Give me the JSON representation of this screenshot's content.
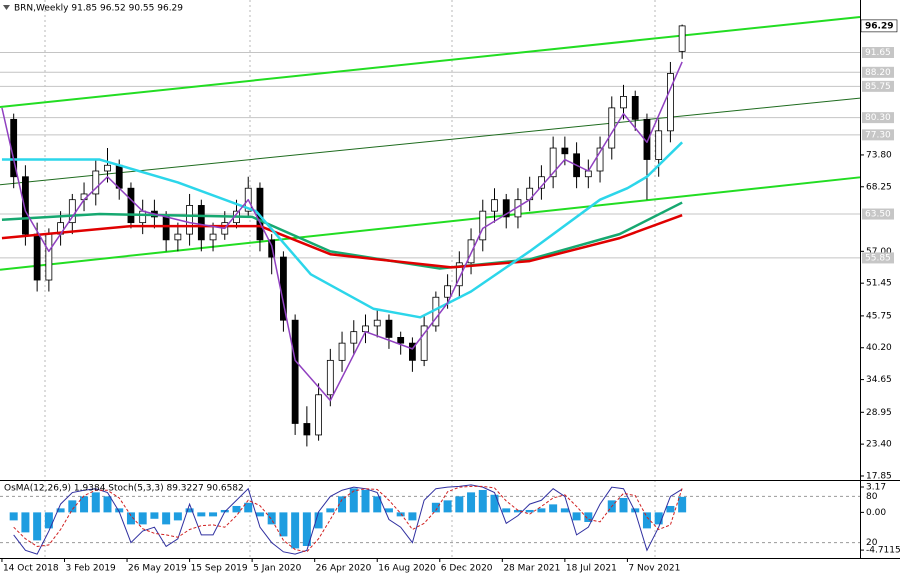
{
  "chart_data": [
    {
      "type": "candlestick",
      "title": "BRN,Weekly  91.85 96.52 90.55 96.29",
      "xlim": [
        -0.5,
        219.5
      ],
      "xticks": [
        {
          "value": 0,
          "label": "14 Oct 2018"
        },
        {
          "value": 16,
          "label": "3 Feb 2019"
        },
        {
          "value": 32,
          "label": "26 May 2019"
        },
        {
          "value": 48,
          "label": "15 Sep 2019"
        },
        {
          "value": 64,
          "label": "5 Jan 2020"
        },
        {
          "value": 80,
          "label": "26 Apr 2020"
        },
        {
          "value": 96,
          "label": "16 Aug 2020"
        },
        {
          "value": 112,
          "label": "6 Dec 2020"
        },
        {
          "value": 128,
          "label": "28 Mar 2021"
        },
        {
          "value": 144,
          "label": "18 Jul 2021"
        },
        {
          "value": 160,
          "label": "7 Nov 2021"
        }
      ],
      "ylim": [
        17.15,
        100.8
      ],
      "yticks": [
        {
          "value": 73.8,
          "label": "73.80"
        },
        68.25,
        {
          "value": 57,
          "label": "57.00"
        },
        51.45,
        45.75,
        {
          "value": 40.2,
          "label": "40.20"
        },
        34.65,
        28.95,
        {
          "value": 23.4,
          "label": "23.40"
        },
        17.85
      ],
      "levels": [
        91.65,
        {
          "value": 88.2,
          "label": "88.20"
        },
        85.75,
        {
          "value": 80.3,
          "label": "80.30"
        },
        {
          "value": 77.3,
          "label": "77.30"
        },
        {
          "value": 63.5,
          "label": "63.50"
        },
        55.85
      ],
      "x": [
        3,
        6,
        9,
        12,
        15,
        18,
        21,
        24,
        27,
        30,
        33,
        36,
        39,
        42,
        45,
        48,
        51,
        54,
        57,
        60,
        63,
        66,
        69,
        72,
        75,
        78,
        81,
        84,
        87,
        90,
        93,
        96,
        99,
        102,
        105,
        108,
        111,
        114,
        117,
        120,
        123,
        126,
        129,
        132,
        135,
        138,
        141,
        144,
        147,
        150,
        153,
        156,
        159,
        162,
        165,
        168,
        171,
        174
      ],
      "open": [
        80,
        70,
        60,
        52,
        60,
        62,
        66,
        67,
        71,
        72,
        68,
        62,
        64,
        63,
        59,
        60,
        65,
        59,
        60,
        62,
        64,
        68,
        59,
        56,
        45,
        27,
        25,
        32,
        38,
        41,
        43,
        44,
        45,
        42,
        41,
        38,
        44,
        49,
        51,
        55,
        59,
        64,
        66,
        63,
        66,
        68,
        70,
        75,
        74,
        70,
        71,
        75,
        82,
        84,
        80,
        73,
        78,
        91.85
      ],
      "high": [
        81,
        72,
        62,
        61,
        64,
        67,
        69,
        73,
        75,
        73,
        69,
        66,
        66,
        64,
        62,
        67,
        66,
        62,
        64,
        66,
        70,
        69,
        60,
        57,
        46,
        30,
        34,
        40,
        43,
        45,
        46,
        47,
        46,
        43,
        42,
        46,
        50,
        53,
        57,
        61,
        66,
        68,
        67,
        68,
        70,
        72,
        77,
        77,
        76,
        73,
        77,
        84,
        86,
        85,
        81,
        80,
        90,
        96.52
      ],
      "low": [
        68,
        58,
        50,
        50,
        58,
        60,
        64,
        65,
        69,
        66,
        61,
        60,
        61,
        57,
        57,
        58,
        57,
        57,
        59,
        61,
        63,
        57,
        53,
        43,
        25,
        23,
        24,
        30,
        36,
        39,
        41,
        42,
        40,
        39,
        36,
        37,
        43,
        47,
        49,
        53,
        57,
        62,
        61,
        61,
        64,
        66,
        68,
        72,
        68,
        68,
        69,
        73,
        80,
        78,
        66,
        70,
        76,
        90.55
      ],
      "close": [
        70,
        60,
        52,
        60,
        62,
        66,
        67,
        71,
        72,
        68,
        62,
        64,
        63,
        59,
        60,
        65,
        59,
        60,
        62,
        64,
        68,
        59,
        56,
        45,
        27,
        25,
        32,
        38,
        41,
        43,
        44,
        45,
        42,
        41,
        38,
        44,
        49,
        51,
        55,
        59,
        64,
        66,
        63,
        66,
        68,
        70,
        75,
        74,
        70,
        71,
        75,
        82,
        84,
        80,
        73,
        78,
        88,
        96.29
      ],
      "candle_colors": {
        "up": "#ffffff",
        "down": "#000000",
        "outline": "#000000"
      },
      "ma": [
        {
          "color": "#16a870",
          "x": [
            0,
            25,
            64,
            84,
            112,
            135,
            158,
            174
          ],
          "values": [
            62.5,
            63.5,
            63,
            57,
            54,
            55.6,
            60,
            65.5
          ]
        },
        {
          "color": "#e00000",
          "x": [
            0,
            33,
            66,
            84,
            115,
            135,
            158,
            174
          ],
          "values": [
            59.3,
            61.4,
            61.4,
            56.5,
            54.2,
            55.3,
            59.3,
            63.3
          ]
        },
        {
          "color": "#2cd6ea",
          "x": [
            0,
            25,
            45,
            65,
            79,
            95,
            107,
            120,
            135,
            153,
            160,
            165,
            174
          ],
          "values": [
            73,
            73,
            69,
            64,
            53,
            47,
            45.5,
            50,
            57,
            66,
            68,
            70,
            76
          ]
        },
        {
          "color": "#9040c0",
          "x": [
            0,
            6,
            12,
            21,
            27,
            36,
            48,
            57,
            63,
            69,
            75,
            84,
            93,
            105,
            114,
            123,
            135,
            144,
            150,
            159,
            165,
            174
          ],
          "values": [
            82,
            64,
            57,
            66,
            70,
            64,
            62,
            61,
            66,
            58,
            38,
            31,
            43,
            40,
            48,
            61,
            66,
            73,
            71,
            81,
            76,
            90
          ]
        }
      ],
      "lines": [
        {
          "color": "#22dd22",
          "x": [
            -0.5,
            219.5
          ],
          "values": [
            82.15,
            97.84
          ]
        },
        {
          "color": "#1e6b1e",
          "x": [
            -0.5,
            219.5
          ],
          "values": [
            68.6,
            83.7
          ]
        },
        {
          "color": "#22dd22",
          "x": [
            -0.5,
            219.5
          ],
          "values": [
            53.8,
            69.9
          ]
        }
      ]
    },
    {
      "type": "osma_stoch",
      "title": "OsMA(12,26,9) 1.9384 Stoch(5,3,3) 89.3227 90.6582",
      "ylim": [
        -5.7,
        3.92
      ],
      "yticks": [
        3.17,
        {
          "value": 0,
          "label": "0.00"
        },
        -4.7115
      ],
      "y2lim": [
        0,
        100
      ],
      "y2ticks": [
        80,
        20
      ],
      "color": "#1e9de0",
      "values": [
        -1,
        -2.5,
        -3.5,
        -2,
        0.5,
        1.5,
        2,
        2.5,
        2,
        0.5,
        -1.5,
        -1.5,
        -0.8,
        -1.5,
        -1,
        0.5,
        -0.5,
        -0.5,
        0.3,
        0.8,
        1.2,
        -0.5,
        -1.5,
        -3,
        -4.5,
        -4.2,
        -2,
        0.5,
        2,
        3,
        2.8,
        2,
        0.5,
        -0.5,
        -1,
        0,
        1.2,
        1.5,
        2,
        2.5,
        2.8,
        2.2,
        0.5,
        0.3,
        0.3,
        0.5,
        1,
        0.5,
        -1,
        -1.2,
        0,
        1.5,
        1.8,
        0.5,
        -2,
        -1.5,
        0.8,
        1.9384
      ],
      "series": [
        {
          "color": "#3030a0",
          "axis": "y2",
          "values": [
            30,
            10,
            5,
            35,
            70,
            85,
            88,
            90,
            85,
            60,
            20,
            35,
            40,
            15,
            25,
            70,
            30,
            30,
            60,
            75,
            90,
            40,
            20,
            8,
            5,
            10,
            60,
            80,
            88,
            92,
            90,
            85,
            50,
            40,
            20,
            75,
            90,
            92,
            93,
            95,
            92,
            85,
            45,
            55,
            70,
            75,
            90,
            80,
            30,
            40,
            70,
            92,
            90,
            60,
            10,
            40,
            80,
            89.3227
          ]
        },
        {
          "color": "#d02020",
          "axis": "y2",
          "values": [
            40,
            25,
            15,
            17,
            37,
            63,
            81,
            88,
            88,
            78,
            55,
            38,
            32,
            30,
            27,
            37,
            42,
            43,
            40,
            55,
            75,
            68,
            50,
            23,
            11,
            8,
            25,
            50,
            76,
            87,
            90,
            89,
            75,
            58,
            37,
            45,
            62,
            86,
            92,
            93,
            93,
            91,
            74,
            62,
            57,
            67,
            78,
            82,
            67,
            50,
            47,
            67,
            84,
            81,
            53,
            37,
            43,
            90.6582
          ]
        }
      ]
    }
  ]
}
